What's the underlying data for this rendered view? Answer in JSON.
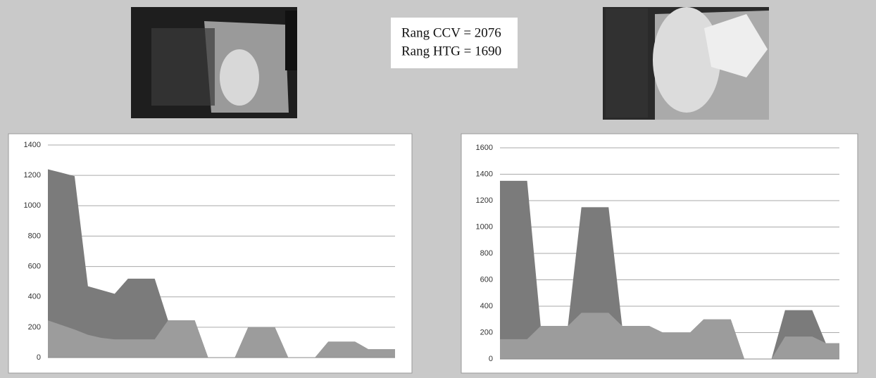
{
  "text_box": {
    "lines": [
      "Rang CCV = 2076",
      "Rang HTG = 1690"
    ]
  },
  "chart_data": [
    {
      "type": "area",
      "categories": [
        null,
        null,
        null,
        null,
        null,
        null,
        null,
        null,
        null,
        null,
        null,
        null,
        null,
        null,
        null,
        null,
        null,
        null,
        null,
        null,
        null,
        null,
        null,
        null,
        null,
        null,
        null
      ],
      "series": [
        {
          "color": "#7b7b7b",
          "values": [
            1240,
            1218,
            1195,
            470,
            445,
            420,
            520,
            520,
            520,
            245,
            245,
            245,
            0,
            0,
            0,
            200,
            200,
            200,
            0,
            0,
            0,
            105,
            105,
            105,
            55,
            55,
            55
          ]
        },
        {
          "color": "#9c9c9c",
          "values": [
            245,
            215,
            185,
            150,
            130,
            120,
            120,
            120,
            120,
            245,
            245,
            245,
            0,
            0,
            0,
            200,
            200,
            200,
            0,
            0,
            0,
            105,
            105,
            105,
            55,
            55,
            55
          ]
        }
      ],
      "ylim": [
        0,
        1400
      ],
      "yticks": [
        0,
        200,
        400,
        600,
        800,
        1000,
        1200,
        1400
      ],
      "grid": true
    },
    {
      "type": "area",
      "categories": [
        null,
        null,
        null,
        null,
        null,
        null,
        null,
        null,
        null,
        null,
        null,
        null,
        null,
        null,
        null,
        null,
        null,
        null,
        null,
        null,
        null,
        null,
        null,
        null,
        null,
        null
      ],
      "series": [
        {
          "color": "#7b7b7b",
          "values": [
            1350,
            1350,
            1350,
            250,
            250,
            250,
            1150,
            1150,
            1150,
            250,
            250,
            250,
            200,
            200,
            200,
            300,
            300,
            300,
            0,
            0,
            0,
            370,
            370,
            370,
            120,
            120
          ]
        },
        {
          "color": "#9c9c9c",
          "values": [
            150,
            150,
            150,
            250,
            250,
            250,
            350,
            350,
            350,
            250,
            250,
            250,
            200,
            200,
            200,
            300,
            300,
            300,
            0,
            0,
            0,
            170,
            170,
            170,
            120,
            120
          ]
        }
      ],
      "ylim": [
        0,
        1600
      ],
      "yticks": [
        0,
        200,
        400,
        600,
        800,
        1000,
        1200,
        1400,
        1600
      ],
      "grid": true
    }
  ]
}
